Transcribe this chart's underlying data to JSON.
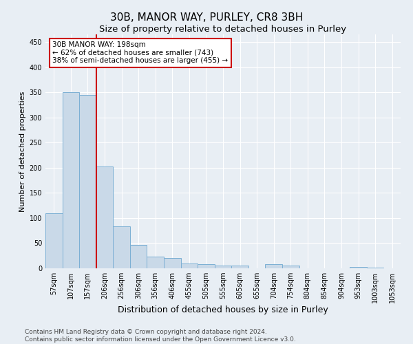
{
  "title1": "30B, MANOR WAY, PURLEY, CR8 3BH",
  "title2": "Size of property relative to detached houses in Purley",
  "xlabel": "Distribution of detached houses by size in Purley",
  "ylabel": "Number of detached properties",
  "bar_labels": [
    "57sqm",
    "107sqm",
    "157sqm",
    "206sqm",
    "256sqm",
    "306sqm",
    "356sqm",
    "406sqm",
    "455sqm",
    "505sqm",
    "555sqm",
    "605sqm",
    "655sqm",
    "704sqm",
    "754sqm",
    "804sqm",
    "854sqm",
    "904sqm",
    "953sqm",
    "1003sqm",
    "1053sqm"
  ],
  "bar_values": [
    110,
    350,
    345,
    202,
    83,
    46,
    23,
    20,
    10,
    8,
    6,
    5,
    0,
    8,
    5,
    0,
    0,
    0,
    3,
    2,
    0
  ],
  "bar_color": "#c9d9e8",
  "bar_edge_color": "#7bafd4",
  "vline_x": 2.5,
  "vline_color": "#cc0000",
  "annotation_text": "30B MANOR WAY: 198sqm\n← 62% of detached houses are smaller (743)\n38% of semi-detached houses are larger (455) →",
  "annotation_box_color": "#ffffff",
  "annotation_box_edge": "#cc0000",
  "ylim": [
    0,
    465
  ],
  "yticks": [
    0,
    50,
    100,
    150,
    200,
    250,
    300,
    350,
    400,
    450
  ],
  "footer1": "Contains HM Land Registry data © Crown copyright and database right 2024.",
  "footer2": "Contains public sector information licensed under the Open Government Licence v3.0.",
  "bg_color": "#e8eef4",
  "grid_color": "#ffffff",
  "title1_fontsize": 11,
  "title2_fontsize": 9.5,
  "xlabel_fontsize": 9,
  "ylabel_fontsize": 8,
  "tick_fontsize": 7,
  "footer_fontsize": 6.5,
  "annot_fontsize": 7.5
}
